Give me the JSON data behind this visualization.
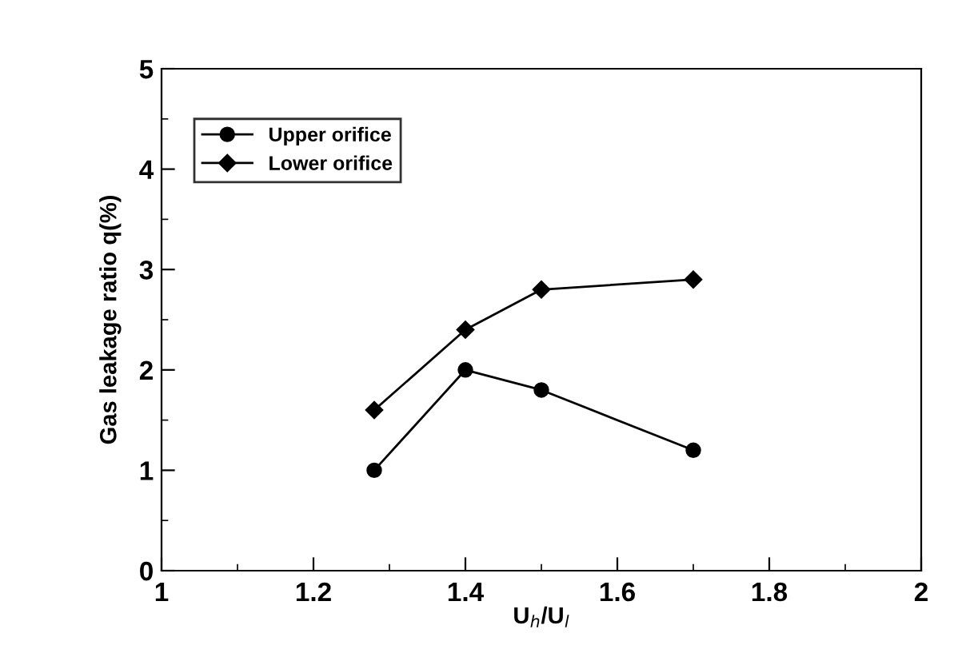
{
  "chart_data": {
    "type": "line",
    "xlabel": "U$_{h}$/U$_{l}$",
    "ylabel": "Gas leakage ratio q(%)",
    "x": [
      1.28,
      1.4,
      1.5,
      1.7
    ],
    "series": [
      {
        "name": "Upper orifice",
        "color": "#000000",
        "marker": "circle",
        "values": [
          1.0,
          2.0,
          1.8,
          1.2
        ]
      },
      {
        "name": "Lower orifice",
        "color": "#000000",
        "marker": "diamond",
        "values": [
          1.6,
          2.4,
          2.8,
          2.9
        ]
      }
    ],
    "xlim": [
      1,
      2
    ],
    "ylim": [
      0,
      5
    ],
    "xticks": [
      1,
      {
        "value": 1.1,
        "label": null
      },
      1.2,
      {
        "value": 1.3,
        "label": null
      },
      1.4,
      {
        "value": 1.5,
        "label": null
      },
      1.6,
      {
        "value": 1.7,
        "label": null
      },
      1.8,
      {
        "value": 1.9,
        "label": null
      },
      2
    ],
    "yticks": [
      0,
      {
        "value": 0.5,
        "label": null
      },
      1,
      {
        "value": 1.5,
        "label": null
      },
      2,
      {
        "value": 2.5,
        "label": null
      },
      3,
      {
        "value": 3.5,
        "label": null
      },
      4,
      {
        "value": 4.5,
        "label": null
      },
      5
    ],
    "legend": "upper left",
    "grid": false,
    "line_style": "solid"
  }
}
